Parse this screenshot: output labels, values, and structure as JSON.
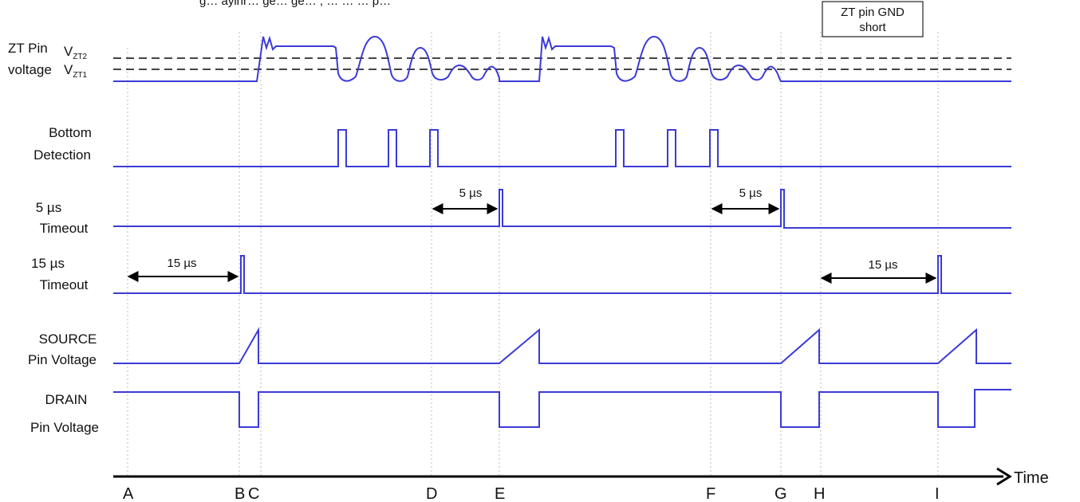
{
  "caption_fragment": "g… ayinr… ge… ge… , … … … p…",
  "signals": [
    {
      "id": "zt",
      "line1": "ZT Pin",
      "line2": "voltage"
    },
    {
      "id": "bottom",
      "line1": "Bottom",
      "line2": "Detection"
    },
    {
      "id": "t5",
      "line1": "5 µs",
      "line2": "Timeout"
    },
    {
      "id": "t15",
      "line1": "15 µs",
      "line2": "Timeout"
    },
    {
      "id": "source",
      "line1": "SOURCE",
      "line2": "Pin Voltage"
    },
    {
      "id": "drain",
      "line1": "DRAIN",
      "line2": "Pin Voltage"
    }
  ],
  "thresholds": {
    "vzt2_main": "V",
    "vzt2_sub": "ZT2",
    "vzt1_main": "V",
    "vzt1_sub": "ZT1"
  },
  "box_note": {
    "line1": "ZT pin GND",
    "line2": "short"
  },
  "interval_labels": {
    "t15_first": "15 µs",
    "t15_second": "15 µs",
    "t5_first": "5 µs",
    "t5_second": "5 µs"
  },
  "time_axis": {
    "label": "Time",
    "events": [
      "A",
      "B",
      "C",
      "D",
      "E",
      "F",
      "G",
      "H",
      "I"
    ]
  }
}
